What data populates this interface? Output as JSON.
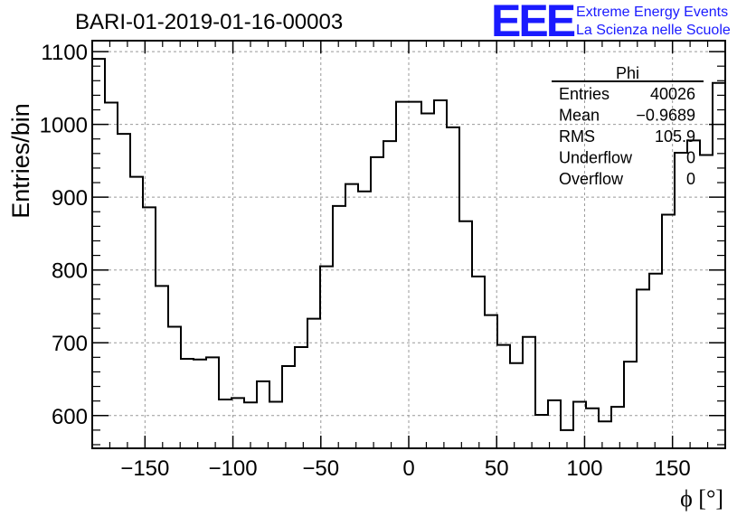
{
  "header": {
    "run_title": "BARI-01-2019-01-16-00003",
    "logo_text": "EEE",
    "logo_line1": "Extreme Energy Events",
    "logo_line2": "La Scienza nelle Scuole",
    "logo_color": "#1a1aff"
  },
  "chart_data": {
    "type": "bar",
    "style": "histogram-step",
    "title": "",
    "xlabel": "ϕ [°]",
    "ylabel": "Entries/bin",
    "xlim": [
      -180,
      180
    ],
    "ylim": [
      555,
      1115
    ],
    "grid": true,
    "x_ticks": [
      -150,
      -100,
      -50,
      0,
      50,
      100,
      150
    ],
    "y_ticks": [
      600,
      700,
      800,
      900,
      1000,
      1100
    ],
    "bin_width": 7.2,
    "bin_start": -180,
    "values": [
      1090,
      1030,
      987,
      928,
      886,
      778,
      722,
      678,
      677,
      680,
      622,
      624,
      618,
      647,
      619,
      668,
      694,
      733,
      805,
      888,
      918,
      908,
      955,
      977,
      1031,
      1031,
      1015,
      1033,
      996,
      867,
      791,
      738,
      697,
      672,
      708,
      601,
      621,
      580,
      619,
      610,
      592,
      612,
      674,
      773,
      795,
      876,
      961,
      978,
      958,
      1057
    ],
    "stats_box": {
      "title": "Phi",
      "rows": [
        {
          "label": "Entries",
          "value": "40026"
        },
        {
          "label": "Mean",
          "value": "−0.9689"
        },
        {
          "label": "RMS",
          "value": "105.9"
        },
        {
          "label": "Underflow",
          "value": "0"
        },
        {
          "label": "Overflow",
          "value": "0"
        }
      ]
    }
  }
}
